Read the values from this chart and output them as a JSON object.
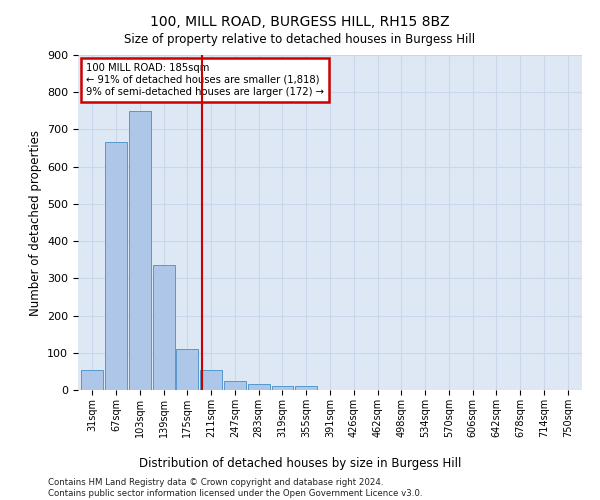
{
  "title": "100, MILL ROAD, BURGESS HILL, RH15 8BZ",
  "subtitle": "Size of property relative to detached houses in Burgess Hill",
  "xlabel": "Distribution of detached houses by size in Burgess Hill",
  "ylabel": "Number of detached properties",
  "bar_values": [
    55,
    665,
    750,
    335,
    110,
    55,
    25,
    15,
    10,
    10,
    0,
    0,
    0,
    0,
    0,
    0,
    0,
    0,
    0,
    0
  ],
  "bar_labels": [
    "31sqm",
    "67sqm",
    "103sqm",
    "139sqm",
    "175sqm",
    "211sqm",
    "247sqm",
    "283sqm",
    "319sqm",
    "355sqm",
    "391sqm",
    "426sqm",
    "462sqm",
    "498sqm",
    "534sqm",
    "570sqm",
    "606sqm",
    "642sqm",
    "678sqm",
    "714sqm",
    "750sqm"
  ],
  "bar_color": "#aec6e8",
  "bar_edge_color": "#5599cc",
  "property_label": "100 MILL ROAD: 185sqm",
  "annotation_line1": "← 91% of detached houses are smaller (1,818)",
  "annotation_line2": "9% of semi-detached houses are larger (172) →",
  "vline_color": "#cc0000",
  "vline_x_bin": 4.62,
  "annotation_box_color": "#cc0000",
  "ylim": [
    0,
    900
  ],
  "yticks": [
    0,
    100,
    200,
    300,
    400,
    500,
    600,
    700,
    800,
    900
  ],
  "grid_color": "#c8d8ea",
  "bg_color": "#dde8f4",
  "footer_line1": "Contains HM Land Registry data © Crown copyright and database right 2024.",
  "footer_line2": "Contains public sector information licensed under the Open Government Licence v3.0."
}
